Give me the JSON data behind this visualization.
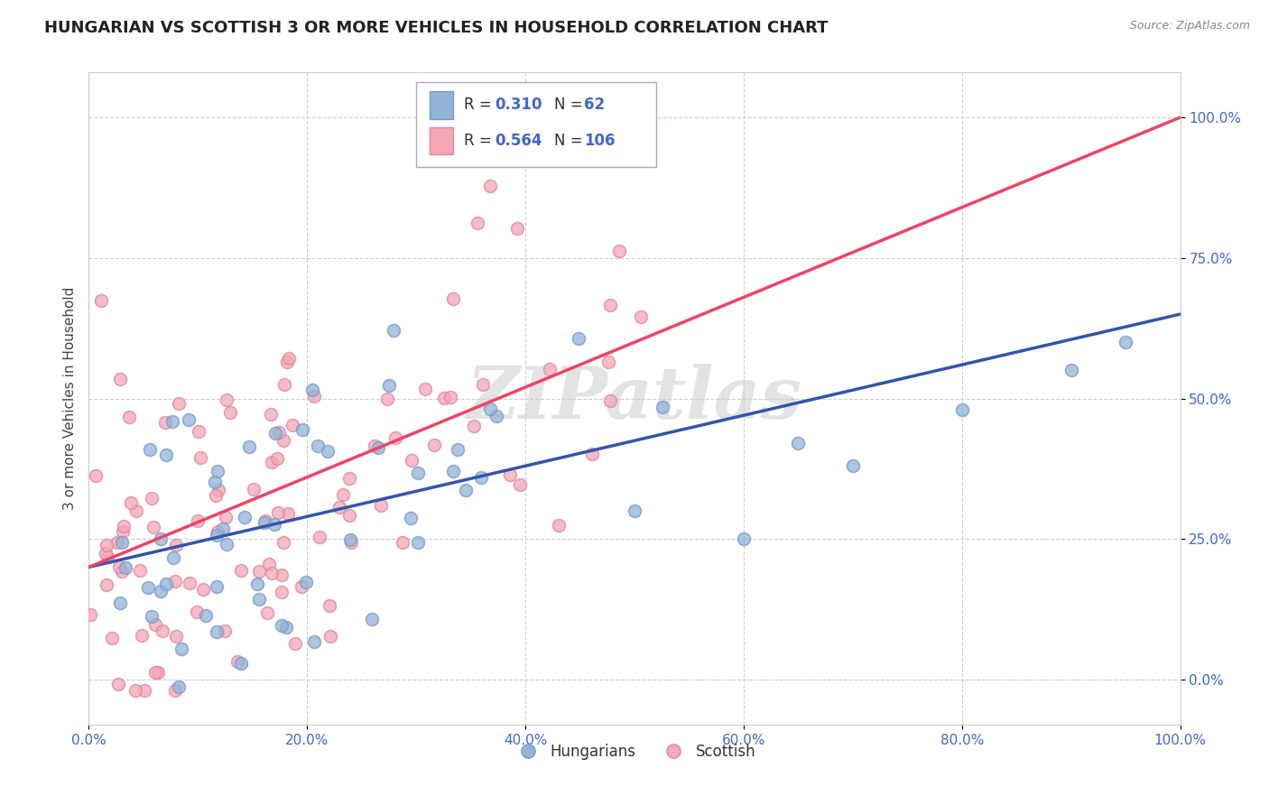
{
  "title": "HUNGARIAN VS SCOTTISH 3 OR MORE VEHICLES IN HOUSEHOLD CORRELATION CHART",
  "source": "Source: ZipAtlas.com",
  "ylabel": "3 or more Vehicles in Household",
  "watermark": "ZIPatlas",
  "blue_R": 0.31,
  "blue_N": 62,
  "pink_R": 0.564,
  "pink_N": 106,
  "xlim": [
    0.0,
    1.0
  ],
  "ylim": [
    -0.08,
    1.08
  ],
  "x_ticks": [
    0.0,
    0.2,
    0.4,
    0.6,
    0.8,
    1.0
  ],
  "x_ticklabels": [
    "0.0%",
    "20.0%",
    "40.0%",
    "60.0%",
    "80.0%",
    "100.0%"
  ],
  "y_ticks": [
    0.0,
    0.25,
    0.5,
    0.75,
    1.0
  ],
  "y_ticklabels": [
    "0.0%",
    "25.0%",
    "50.0%",
    "75.0%",
    "100.0%"
  ],
  "blue_color": "#92B4D7",
  "blue_edge": "#7799CC",
  "pink_color": "#F4A7B5",
  "pink_edge": "#E088A0",
  "blue_line_color": "#3355AA",
  "pink_line_color": "#EE4466",
  "tick_color": "#4466CC",
  "legend_label_blue": "Hungarians",
  "legend_label_pink": "Scottish",
  "background_color": "#FFFFFF",
  "grid_color": "#CCCCDD",
  "title_fontsize": 13,
  "axis_fontsize": 11,
  "tick_fontsize": 11,
  "marker_size": 100,
  "marker_linewidth": 1.2,
  "blue_line_start_y": 0.2,
  "blue_line_end_y": 0.65,
  "pink_line_start_y": 0.2,
  "pink_line_end_y": 1.0
}
